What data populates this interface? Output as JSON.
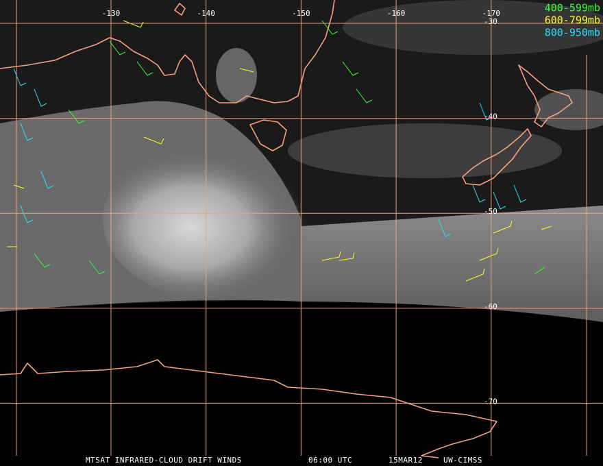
{
  "legend": [
    {
      "label": "400-599mb",
      "color": "#33ff33"
    },
    {
      "label": "600-799mb",
      "color": "#ffff22"
    },
    {
      "label": "800-950mb",
      "color": "#22e0ff"
    }
  ],
  "longitudes": [
    -130,
    -140,
    -150,
    -160,
    -170
  ],
  "latitudes": [
    -30,
    -40,
    -50,
    -60,
    -70
  ],
  "footer": {
    "product": "MTSAT INFRARED-CLOUD DRIFT WINDS",
    "time": "06:00 UTC",
    "date": "15MAR12",
    "source": "UW-CIMSS"
  }
}
